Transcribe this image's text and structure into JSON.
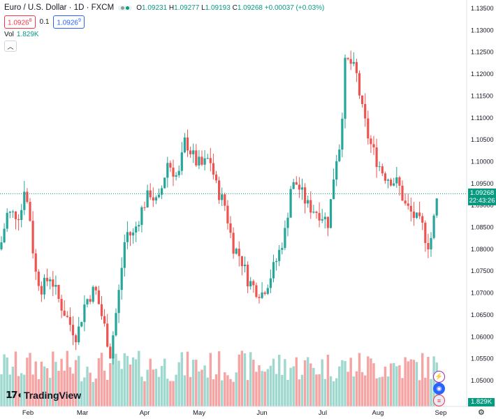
{
  "header": {
    "symbol_title": "Euro / U.S. Dollar · 1D · FXCM",
    "open_label": "O",
    "open": "1.09231",
    "high_label": "H",
    "high": "1.09277",
    "low_label": "L",
    "low": "1.09193",
    "close_label": "C",
    "close": "1.09268",
    "change": "+0.00037 (+0.03%)"
  },
  "trade": {
    "sell_price": "1.0926",
    "sell_sup": "8",
    "spread": "0.1",
    "buy_price": "1.0926",
    "buy_sup": "9"
  },
  "volume_legend": {
    "label": "Vol",
    "value": "1.829K"
  },
  "logo_text": "TradingView",
  "price_tag": {
    "price": "1.09268",
    "countdown": "22:43:26"
  },
  "volume_tag": "1.829K",
  "colors": {
    "up": "#26a69a",
    "down": "#ef5350",
    "vol_up": "#9fd8ce",
    "vol_down": "#f5a3a3",
    "price_line": "#089981"
  },
  "icons": [
    "flash-icon",
    "calendar-event-icon",
    "us-flag-icon",
    "settings-icon"
  ],
  "chart_data": {
    "type": "candlestick",
    "y_axis_ticks": [
      "1.13500",
      "1.13000",
      "1.12500",
      "1.12000",
      "1.11500",
      "1.11000",
      "1.10500",
      "1.10000",
      "1.09500",
      "1.09000",
      "1.08500",
      "1.08000",
      "1.07500",
      "1.07000",
      "1.06500",
      "1.06000",
      "1.05500",
      "1.05000"
    ],
    "x_axis_ticks": [
      "Feb",
      "Mar",
      "Apr",
      "May",
      "Jun",
      "Jul",
      "Aug",
      "Sep"
    ],
    "ylim": [
      1.0475,
      1.1375
    ],
    "anchors": [
      [
        0,
        1.08
      ],
      [
        10,
        1.088
      ],
      [
        20,
        1.088
      ],
      [
        30,
        1.088
      ],
      [
        34,
        1.095
      ],
      [
        43,
        1.087
      ],
      [
        50,
        1.075
      ],
      [
        60,
        1.071
      ],
      [
        72,
        1.074
      ],
      [
        85,
        1.068
      ],
      [
        100,
        1.063
      ],
      [
        110,
        1.06
      ],
      [
        122,
        1.068
      ],
      [
        136,
        1.071
      ],
      [
        150,
        1.062
      ],
      [
        158,
        1.056
      ],
      [
        170,
        1.07
      ],
      [
        180,
        1.084
      ],
      [
        190,
        1.083
      ],
      [
        205,
        1.09
      ],
      [
        215,
        1.093
      ],
      [
        226,
        1.09
      ],
      [
        240,
        1.1
      ],
      [
        255,
        1.096
      ],
      [
        265,
        1.105
      ],
      [
        280,
        1.1
      ],
      [
        290,
        1.099
      ],
      [
        300,
        1.101
      ],
      [
        310,
        1.094
      ],
      [
        322,
        1.09
      ],
      [
        333,
        1.081
      ],
      [
        345,
        1.078
      ],
      [
        355,
        1.073
      ],
      [
        365,
        1.071
      ],
      [
        375,
        1.07
      ],
      [
        385,
        1.073
      ],
      [
        397,
        1.078
      ],
      [
        410,
        1.085
      ],
      [
        415,
        1.094
      ],
      [
        425,
        1.095
      ],
      [
        440,
        1.09
      ],
      [
        460,
        1.088
      ],
      [
        470,
        1.086
      ],
      [
        480,
        1.1
      ],
      [
        488,
        1.105
      ],
      [
        493,
        1.122
      ],
      [
        500,
        1.123
      ],
      [
        510,
        1.12
      ],
      [
        518,
        1.112
      ],
      [
        528,
        1.105
      ],
      [
        540,
        1.1
      ],
      [
        550,
        1.097
      ],
      [
        560,
        1.096
      ],
      [
        570,
        1.095
      ],
      [
        580,
        1.09
      ],
      [
        595,
        1.087
      ],
      [
        605,
        1.085
      ],
      [
        612,
        1.081
      ],
      [
        618,
        1.083
      ],
      [
        622,
        1.088
      ],
      [
        627,
        1.0927
      ]
    ],
    "last_price": 1.09268
  }
}
